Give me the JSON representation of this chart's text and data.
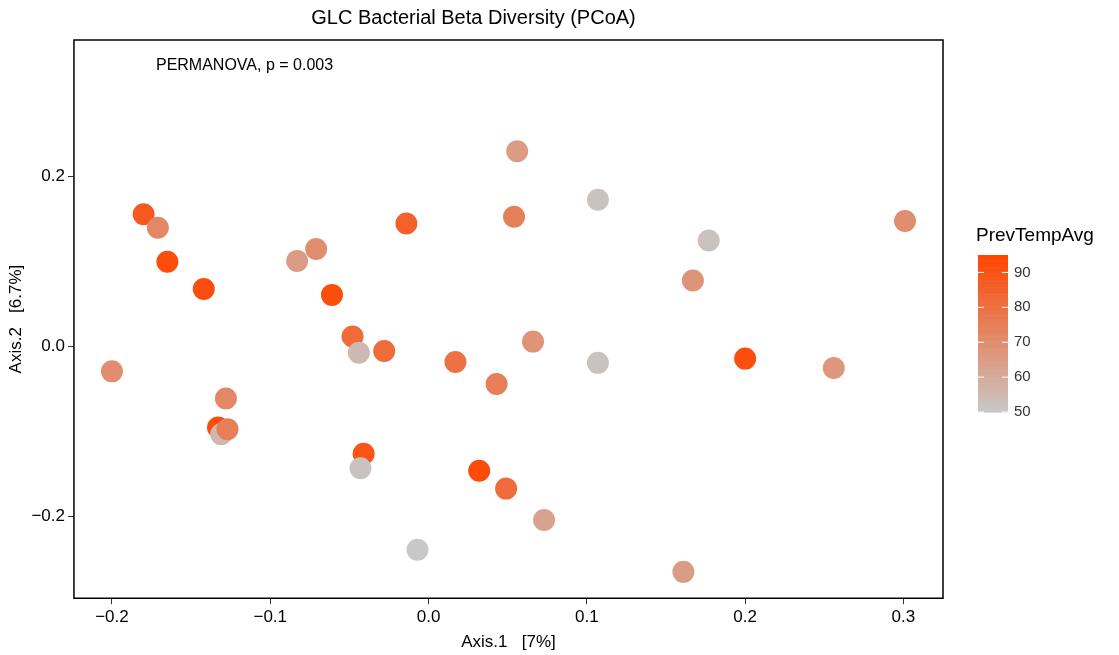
{
  "chart_data": {
    "type": "scatter",
    "title": "GLC Bacterial Beta Diversity (PCoA)",
    "xlabel": "Axis.1   [7%]",
    "ylabel": "Axis.2   [6.7%]",
    "clabel": "PrevTempAvg",
    "annotations": [
      "PERMANOVA, p = 0.003"
    ],
    "x": [
      -0.2,
      -0.18,
      -0.171,
      -0.165,
      -0.142,
      -0.128,
      -0.133,
      -0.131,
      -0.127,
      -0.083,
      -0.071,
      -0.061,
      -0.048,
      -0.044,
      -0.028,
      -0.014,
      -0.041,
      -0.043,
      -0.007,
      0.017,
      0.043,
      0.032,
      0.049,
      0.054,
      0.056,
      0.066,
      0.073,
      0.107,
      0.107,
      0.177,
      0.167,
      0.161,
      0.2,
      0.256,
      0.301
    ],
    "values": [
      -0.029,
      0.156,
      0.14,
      0.1,
      0.068,
      -0.061,
      -0.095,
      -0.103,
      -0.097,
      0.101,
      0.115,
      0.061,
      0.012,
      -0.007,
      -0.005,
      0.145,
      -0.126,
      -0.143,
      -0.239,
      -0.018,
      -0.044,
      -0.146,
      -0.167,
      0.153,
      0.23,
      0.006,
      -0.204,
      -0.019,
      0.173,
      0.125,
      0.078,
      -0.265,
      -0.014,
      -0.025,
      0.148
    ],
    "cvalues": [
      70,
      88,
      72,
      92,
      92,
      72,
      92,
      55,
      75,
      65,
      70,
      92,
      82,
      55,
      82,
      85,
      90,
      52,
      50,
      80,
      75,
      93,
      82,
      75,
      65,
      68,
      63,
      52,
      52,
      52,
      68,
      65,
      92,
      67,
      70
    ],
    "clim": [
      50,
      95
    ],
    "cticks": [
      50,
      60,
      70,
      80,
      90
    ],
    "xlim": [
      -0.224,
      0.325
    ],
    "ylim": [
      -0.296,
      0.361
    ],
    "xticks": [
      {
        "value": -0.2,
        "label": "−0.2"
      },
      {
        "value": -0.1,
        "label": "−0.1"
      },
      {
        "value": 0,
        "label": "0.0"
      },
      0.1,
      0.2,
      0.3
    ],
    "yticks": [
      {
        "value": -0.2,
        "label": "−0.2"
      },
      {
        "value": 0,
        "label": "0.0"
      },
      0.2
    ],
    "grid": false,
    "legend": false,
    "marker": "circle"
  }
}
